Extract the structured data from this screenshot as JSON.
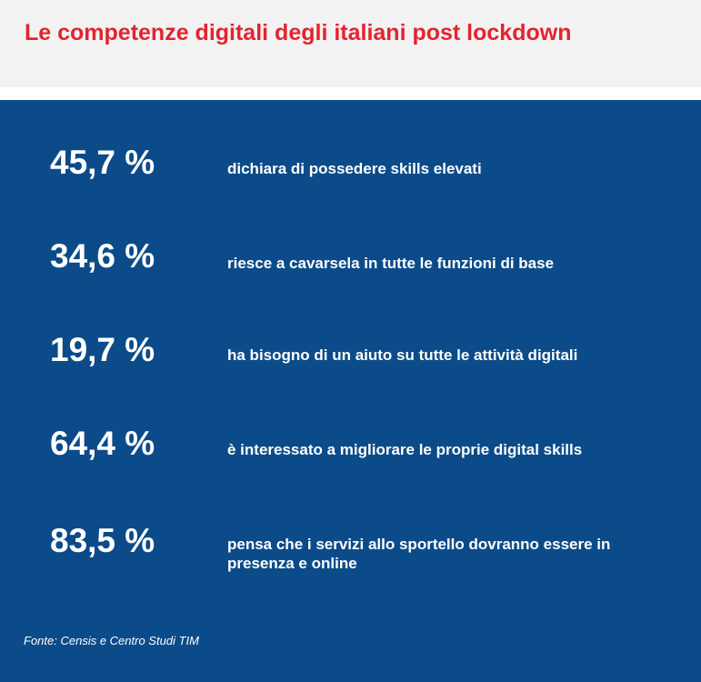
{
  "header": {
    "title": "Le competenze digitali degli italiani post lockdown"
  },
  "stats": [
    {
      "value": "45,7 %",
      "description": "dichiara di possedere skills elevati"
    },
    {
      "value": "34,6 %",
      "description": "riesce a cavarsela in tutte le funzioni di base"
    },
    {
      "value": "19,7 %",
      "description": "ha bisogno di un aiuto su tutte le attività digitali"
    },
    {
      "value": "64,4 %",
      "description": "è interessato a migliorare le proprie digital skills"
    },
    {
      "value": "83,5 %",
      "description": "pensa che i servizi allo sportello dovranno essere in presenza e online"
    }
  ],
  "source": "Fonte: Censis e Centro Studi TIM",
  "colors": {
    "title": "#e5232f",
    "header_background": "#f2f2f2",
    "panel_background": "#0c4b89",
    "text": "#ffffff"
  }
}
